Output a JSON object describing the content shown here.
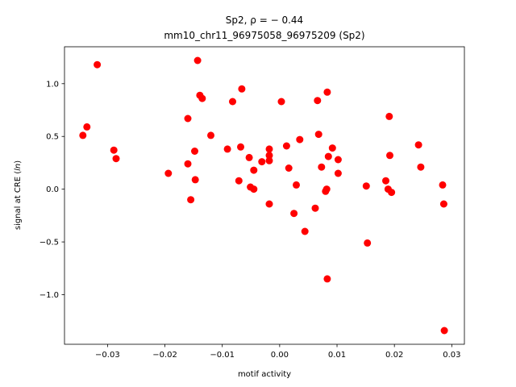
{
  "chart_data": {
    "type": "scatter",
    "title_line1": "Sp2, ρ = − 0.44",
    "title_line2": "mm10_chr11_96975058_96975209 (Sp2)",
    "xlabel": "motif activity",
    "ylabel": "signal at CRE (",
    "ylabel_var": "ln",
    "ylabel_close": ")",
    "xlim": [
      -0.0375,
      0.0322
    ],
    "ylim": [
      -1.47,
      1.35
    ],
    "x_ticks": [
      -0.03,
      -0.02,
      -0.01,
      0.0,
      0.01,
      0.02,
      0.03
    ],
    "x_tick_labels": [
      "−0.03",
      "−0.02",
      "−0.01",
      "0.00",
      "0.01",
      "0.02",
      "0.03"
    ],
    "y_ticks": [
      -1.0,
      -0.5,
      0.0,
      0.5,
      1.0
    ],
    "y_tick_labels": [
      "−1.0",
      "−0.5",
      "0.0",
      "0.5",
      "1.0"
    ],
    "marker_color": "#ff0000",
    "points": [
      {
        "x": -0.0343,
        "y": 0.51
      },
      {
        "x": -0.0336,
        "y": 0.59
      },
      {
        "x": -0.0318,
        "y": 1.18
      },
      {
        "x": -0.0289,
        "y": 0.37
      },
      {
        "x": -0.0285,
        "y": 0.29
      },
      {
        "x": -0.0194,
        "y": 0.15
      },
      {
        "x": -0.016,
        "y": 0.67
      },
      {
        "x": -0.016,
        "y": 0.24
      },
      {
        "x": -0.0155,
        "y": -0.1
      },
      {
        "x": -0.0148,
        "y": 0.36
      },
      {
        "x": -0.0147,
        "y": 0.09
      },
      {
        "x": -0.0143,
        "y": 1.22
      },
      {
        "x": -0.0139,
        "y": 0.89
      },
      {
        "x": -0.0135,
        "y": 0.86
      },
      {
        "x": -0.012,
        "y": 0.51
      },
      {
        "x": -0.0091,
        "y": 0.38
      },
      {
        "x": -0.0082,
        "y": 0.83
      },
      {
        "x": -0.0071,
        "y": 0.08
      },
      {
        "x": -0.0068,
        "y": 0.4
      },
      {
        "x": -0.0066,
        "y": 0.95
      },
      {
        "x": -0.0053,
        "y": 0.3
      },
      {
        "x": -0.0051,
        "y": 0.02
      },
      {
        "x": -0.0045,
        "y": 0.0
      },
      {
        "x": -0.0045,
        "y": 0.18
      },
      {
        "x": -0.0031,
        "y": 0.26
      },
      {
        "x": -0.0018,
        "y": 0.38
      },
      {
        "x": -0.0018,
        "y": 0.32
      },
      {
        "x": -0.0018,
        "y": 0.27
      },
      {
        "x": -0.0018,
        "y": -0.14
      },
      {
        "x": 0.0003,
        "y": 0.83
      },
      {
        "x": 0.0012,
        "y": 0.41
      },
      {
        "x": 0.0016,
        "y": 0.2
      },
      {
        "x": 0.0025,
        "y": -0.23
      },
      {
        "x": 0.0029,
        "y": 0.04
      },
      {
        "x": 0.0035,
        "y": 0.47
      },
      {
        "x": 0.0044,
        "y": -0.4
      },
      {
        "x": 0.0062,
        "y": -0.18
      },
      {
        "x": 0.0066,
        "y": 0.84
      },
      {
        "x": 0.0068,
        "y": 0.52
      },
      {
        "x": 0.0073,
        "y": 0.21
      },
      {
        "x": 0.008,
        "y": -0.02
      },
      {
        "x": 0.0082,
        "y": 0.0
      },
      {
        "x": 0.0083,
        "y": 0.92
      },
      {
        "x": 0.0085,
        "y": 0.31
      },
      {
        "x": 0.0083,
        "y": -0.85
      },
      {
        "x": 0.0092,
        "y": 0.39
      },
      {
        "x": 0.0102,
        "y": 0.28
      },
      {
        "x": 0.0102,
        "y": 0.15
      },
      {
        "x": 0.0151,
        "y": 0.03
      },
      {
        "x": 0.0153,
        "y": -0.51
      },
      {
        "x": 0.0185,
        "y": 0.08
      },
      {
        "x": 0.0189,
        "y": 0.0
      },
      {
        "x": 0.0191,
        "y": 0.69
      },
      {
        "x": 0.0192,
        "y": 0.32
      },
      {
        "x": 0.0195,
        "y": -0.03
      },
      {
        "x": 0.0242,
        "y": 0.42
      },
      {
        "x": 0.0246,
        "y": 0.21
      },
      {
        "x": 0.0284,
        "y": 0.04
      },
      {
        "x": 0.0286,
        "y": -0.14
      },
      {
        "x": 0.0287,
        "y": -1.34
      }
    ]
  }
}
